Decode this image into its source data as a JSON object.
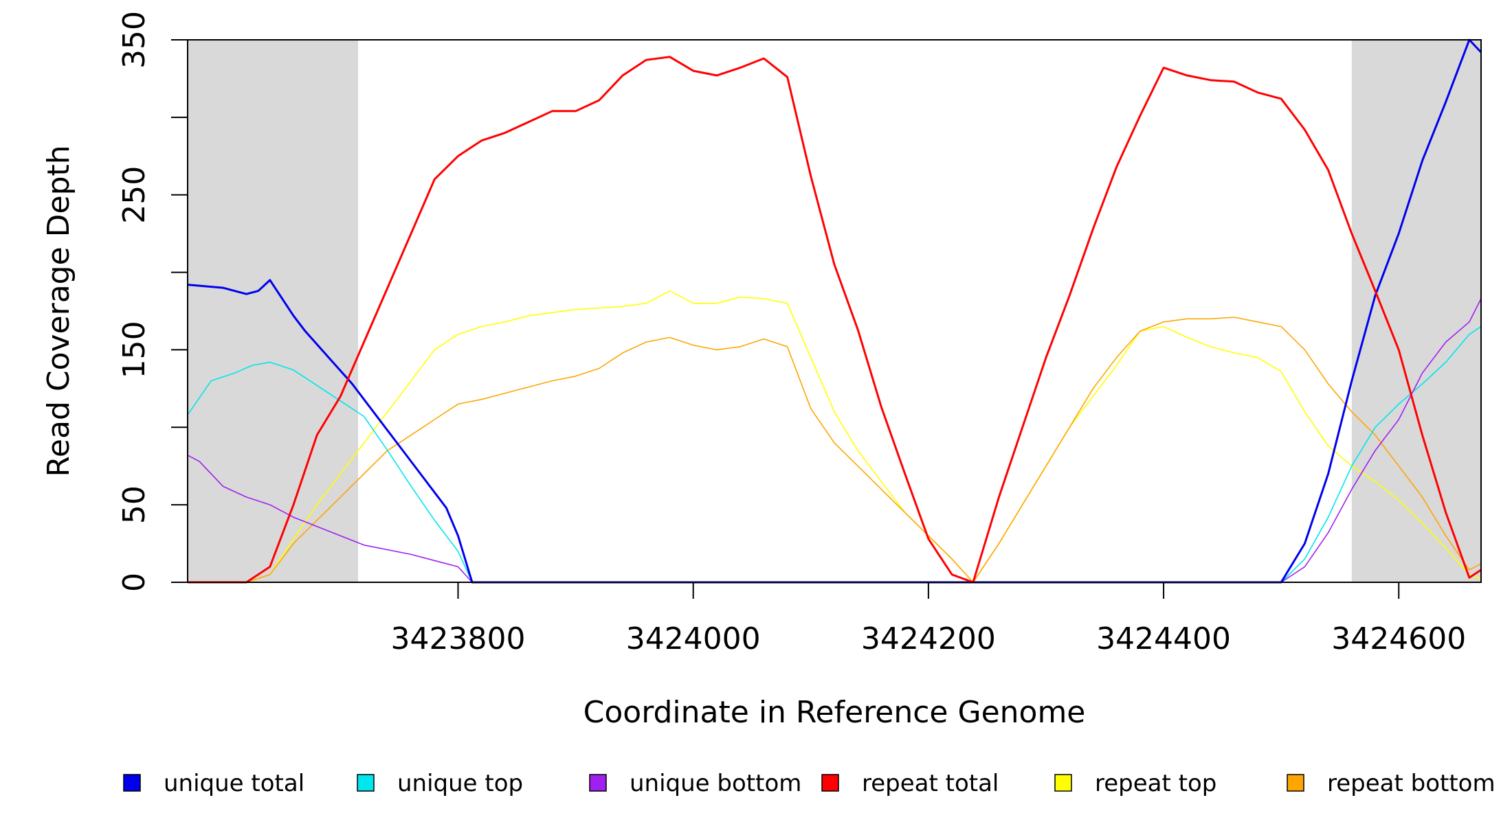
{
  "chart_data": {
    "type": "line",
    "xlabel": "Coordinate in Reference Genome",
    "ylabel": "Read Coverage Depth",
    "xlim": [
      3423570,
      3424670
    ],
    "ylim": [
      0,
      350
    ],
    "x_ticks": [
      3423800,
      3424000,
      3424200,
      3424400,
      3424600
    ],
    "y_ticks": [
      0,
      50,
      150,
      250,
      350
    ],
    "shaded_regions": [
      [
        3423570,
        3423715
      ],
      [
        3424560,
        3424670
      ]
    ],
    "legend_position": "bottom",
    "series": [
      {
        "name": "unique total",
        "color": "#0000ee",
        "x": [
          3423570,
          3423600,
          3423620,
          3423630,
          3423640,
          3423660,
          3423670,
          3423690,
          3423710,
          3423730,
          3423750,
          3423770,
          3423790,
          3423800,
          3423812,
          3424400,
          3424500,
          3424520,
          3424540,
          3424560,
          3424580,
          3424600,
          3424620,
          3424640,
          3424660,
          3424670
        ],
        "values": [
          192,
          190,
          186,
          188,
          195,
          172,
          162,
          145,
          128,
          108,
          88,
          68,
          48,
          30,
          0,
          0,
          0,
          25,
          70,
          130,
          185,
          225,
          272,
          310,
          350,
          342
        ]
      },
      {
        "name": "unique top",
        "color": "#00e5ee",
        "x": [
          3423570,
          3423590,
          3423610,
          3423625,
          3423640,
          3423660,
          3423680,
          3423700,
          3423720,
          3423740,
          3423760,
          3423780,
          3423800,
          3423812,
          3424400,
          3424500,
          3424520,
          3424540,
          3424560,
          3424580,
          3424600,
          3424620,
          3424640,
          3424660,
          3424670
        ],
        "values": [
          108,
          130,
          135,
          140,
          142,
          137,
          127,
          117,
          107,
          85,
          62,
          40,
          20,
          0,
          0,
          0,
          15,
          42,
          75,
          100,
          115,
          128,
          142,
          160,
          165
        ]
      },
      {
        "name": "unique bottom",
        "color": "#a020f0",
        "x": [
          3423570,
          3423580,
          3423600,
          3423620,
          3423640,
          3423660,
          3423680,
          3423700,
          3423720,
          3423760,
          3423800,
          3423812,
          3424400,
          3424500,
          3424520,
          3424540,
          3424560,
          3424580,
          3424600,
          3424620,
          3424640,
          3424660,
          3424670
        ],
        "values": [
          82,
          78,
          62,
          55,
          50,
          42,
          36,
          30,
          24,
          18,
          10,
          0,
          0,
          0,
          10,
          32,
          60,
          85,
          105,
          135,
          155,
          168,
          183
        ]
      },
      {
        "name": "repeat total",
        "color": "#ff0000",
        "x": [
          3423570,
          3423620,
          3423640,
          3423660,
          3423680,
          3423700,
          3423720,
          3423740,
          3423760,
          3423780,
          3423800,
          3423820,
          3423840,
          3423860,
          3423880,
          3423900,
          3423920,
          3423940,
          3423960,
          3423980,
          3424000,
          3424020,
          3424040,
          3424060,
          3424080,
          3424100,
          3424120,
          3424140,
          3424160,
          3424180,
          3424200,
          3424220,
          3424238,
          3424260,
          3424280,
          3424300,
          3424320,
          3424340,
          3424360,
          3424380,
          3424400,
          3424420,
          3424440,
          3424460,
          3424480,
          3424500,
          3424520,
          3424540,
          3424560,
          3424580,
          3424600,
          3424620,
          3424640,
          3424660,
          3424670
        ],
        "values": [
          0,
          0,
          10,
          50,
          95,
          120,
          155,
          190,
          225,
          260,
          275,
          285,
          290,
          297,
          304,
          304,
          311,
          327,
          337,
          339,
          330,
          327,
          332,
          338,
          326,
          262,
          205,
          163,
          113,
          70,
          28,
          5,
          0,
          55,
          100,
          145,
          185,
          228,
          268,
          301,
          332,
          327,
          324,
          323,
          316,
          312,
          292,
          266,
          225,
          188,
          150,
          95,
          45,
          3,
          8
        ]
      },
      {
        "name": "repeat top",
        "color": "#ffff00",
        "x": [
          3423570,
          3423620,
          3423640,
          3423660,
          3423680,
          3423700,
          3423720,
          3423740,
          3423760,
          3423780,
          3423800,
          3423820,
          3423840,
          3423860,
          3423880,
          3423900,
          3423920,
          3423940,
          3423960,
          3423980,
          3424000,
          3424020,
          3424040,
          3424060,
          3424080,
          3424100,
          3424120,
          3424140,
          3424160,
          3424180,
          3424200,
          3424220,
          3424238,
          3424260,
          3424280,
          3424300,
          3424320,
          3424340,
          3424360,
          3424380,
          3424400,
          3424420,
          3424440,
          3424460,
          3424480,
          3424500,
          3424520,
          3424540,
          3424560,
          3424580,
          3424600,
          3424620,
          3424640,
          3424660,
          3424670
        ],
        "values": [
          0,
          0,
          5,
          28,
          50,
          70,
          90,
          110,
          130,
          150,
          160,
          165,
          168,
          172,
          174,
          176,
          177,
          178,
          180,
          188,
          180,
          180,
          184,
          183,
          180,
          145,
          110,
          85,
          65,
          45,
          30,
          15,
          0,
          25,
          50,
          75,
          100,
          120,
          140,
          162,
          165,
          158,
          152,
          148,
          145,
          136,
          110,
          88,
          75,
          65,
          53,
          38,
          22,
          5,
          2
        ]
      },
      {
        "name": "repeat bottom",
        "color": "#ffa500",
        "x": [
          3423570,
          3423620,
          3423640,
          3423660,
          3423680,
          3423700,
          3423720,
          3423740,
          3423760,
          3423780,
          3423800,
          3423820,
          3423840,
          3423860,
          3423880,
          3423900,
          3423920,
          3423940,
          3423960,
          3423980,
          3424000,
          3424020,
          3424040,
          3424060,
          3424080,
          3424100,
          3424120,
          3424140,
          3424160,
          3424180,
          3424200,
          3424220,
          3424238,
          3424260,
          3424280,
          3424300,
          3424320,
          3424340,
          3424360,
          3424380,
          3424400,
          3424420,
          3424440,
          3424460,
          3424480,
          3424500,
          3424520,
          3424540,
          3424560,
          3424580,
          3424600,
          3424620,
          3424640,
          3424660,
          3424670
        ],
        "values": [
          0,
          0,
          5,
          25,
          40,
          55,
          70,
          85,
          95,
          105,
          115,
          118,
          122,
          126,
          130,
          133,
          138,
          148,
          155,
          158,
          153,
          150,
          152,
          157,
          152,
          112,
          90,
          75,
          60,
          45,
          30,
          15,
          0,
          25,
          50,
          75,
          100,
          125,
          145,
          162,
          168,
          170,
          170,
          171,
          168,
          165,
          150,
          128,
          110,
          95,
          75,
          55,
          30,
          8,
          12
        ]
      }
    ]
  }
}
